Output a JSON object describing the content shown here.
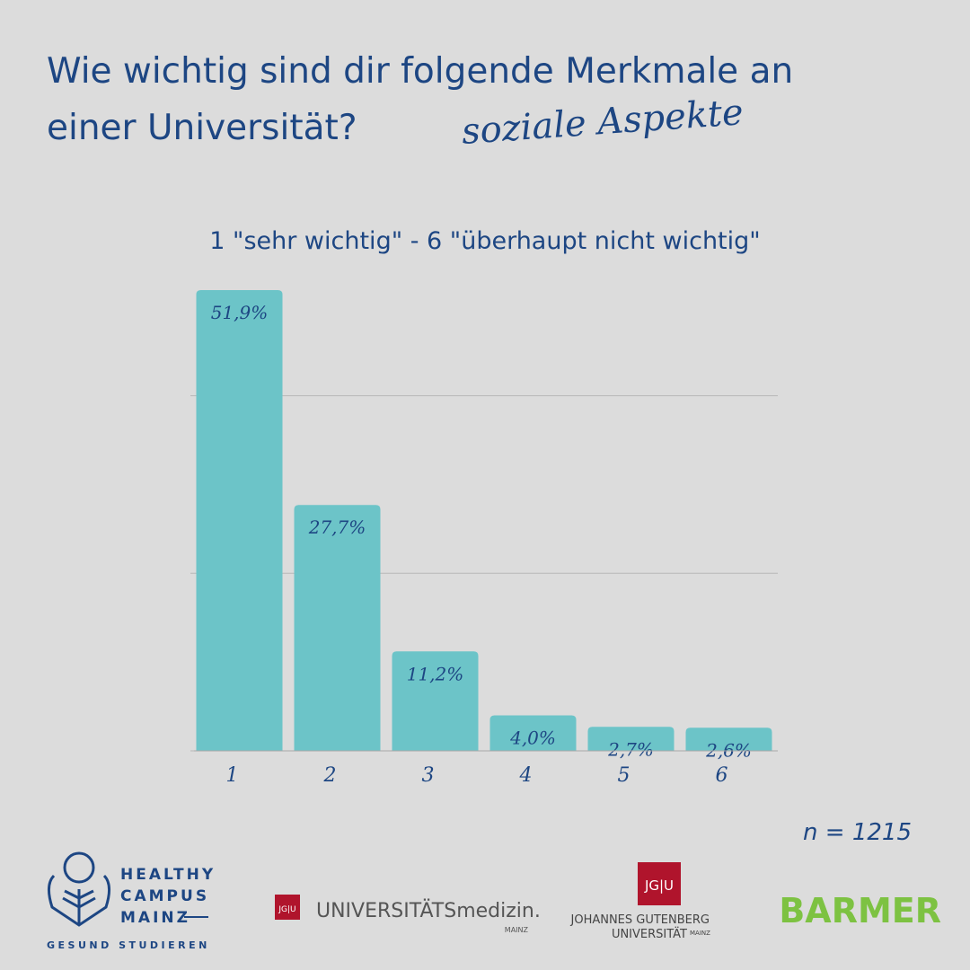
{
  "chart_data": {
    "type": "bar",
    "title": [
      "Wie wichtig sind dir folgende Merkmale an",
      "einer Universität?"
    ],
    "subtitle": "soziale Aspekte",
    "scale_note": "1 \"sehr wichtig\" - 6 \"überhaupt nicht wichtig\"",
    "categories": [
      "1",
      "2",
      "3",
      "4",
      "5",
      "6"
    ],
    "values": [
      51.9,
      27.7,
      11.2,
      4.0,
      2.7,
      2.6
    ],
    "value_labels": [
      "51,9%",
      "27,7%",
      "11,2%",
      "4,0%",
      "2,7%",
      "2,6%"
    ],
    "color": "#6cc4c8",
    "ylim": [
      0,
      52
    ],
    "yticks": [
      0,
      20,
      40
    ],
    "grid": true,
    "sample_size": "n = 1215"
  },
  "logos": {
    "healthy_campus": [
      "HEALTHY",
      "CAMPUS",
      "MAINZ"
    ],
    "healthy_campus_tagline": "GESUND STUDIEREN",
    "jgu_mark": "JG|U",
    "unimedizin": "UNIVERSITÄTSmedizin.",
    "unimedizin_city": "MAINZ",
    "jgu_name": [
      "JOHANNES GUTENBERG",
      "UNIVERSITÄT"
    ],
    "jgu_city": "MAINZ",
    "barmer": "BARMER"
  }
}
